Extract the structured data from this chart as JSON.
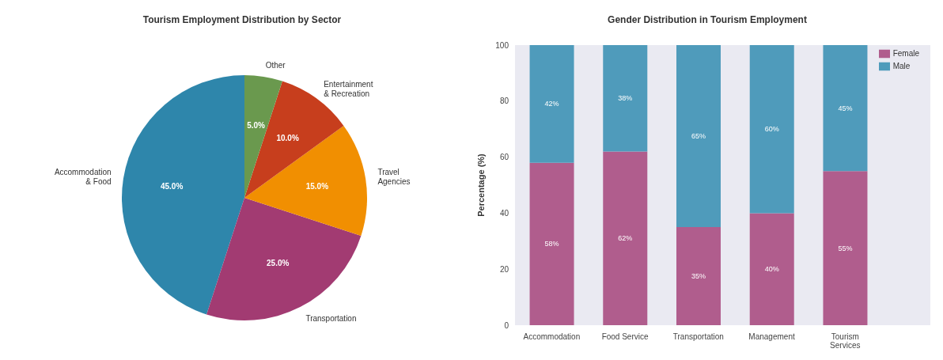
{
  "chart_data": [
    {
      "type": "pie",
      "title": "Tourism Employment Distribution by Sector",
      "categories": [
        "Accommodation\n& Food",
        "Transportation",
        "Travel\nAgencies",
        "Entertainment\n& Recreation",
        "Other"
      ],
      "values": [
        45,
        25,
        15,
        10,
        5
      ],
      "colors": [
        "#2e86ab",
        "#a23b72",
        "#f18f01",
        "#c73e1d",
        "#6a994e"
      ],
      "value_labels": [
        "45.0%",
        "25.0%",
        "15.0%",
        "10.0%",
        "5.0%"
      ]
    },
    {
      "type": "bar",
      "title": "Gender Distribution in Tourism Employment",
      "ylabel": "Percentage (%)",
      "categories": [
        "Accommodation",
        "Food Service",
        "Transportation",
        "Management",
        "Tourism\nServices"
      ],
      "stacked": true,
      "ylim": [
        0,
        100
      ],
      "yticks": [
        0,
        20,
        40,
        60,
        80,
        100
      ],
      "legend": "top right",
      "series": [
        {
          "name": "Female",
          "color": "#b05d8d",
          "values": [
            58,
            62,
            35,
            40,
            55
          ],
          "value_labels": [
            "58%",
            "62%",
            "35%",
            "40%",
            "55%"
          ]
        },
        {
          "name": "Male",
          "color": "#4f9bbb",
          "values": [
            42,
            38,
            65,
            60,
            45
          ],
          "value_labels": [
            "42%",
            "38%",
            "65%",
            "60%",
            "45%"
          ]
        }
      ]
    }
  ]
}
